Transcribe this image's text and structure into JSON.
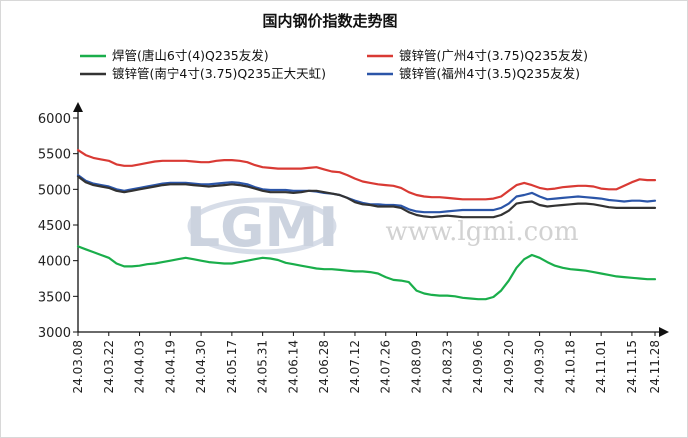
{
  "chart_data": {
    "type": "line",
    "title": "国内钢价指数走势图",
    "xlabel": "",
    "ylabel": "",
    "ylim": [
      3000,
      6000
    ],
    "yticks": [
      3000,
      3500,
      4000,
      4500,
      5000,
      5500,
      6000
    ],
    "grid": false,
    "legend_position": "top",
    "x_tick_labels": [
      "24.03.08",
      "24.03.22",
      "24.04.03",
      "24.04.19",
      "24.04.30",
      "24.05.17",
      "24.05.31",
      "24.06.14",
      "24.06.28",
      "24.07.12",
      "24.07.26",
      "24.08.09",
      "24.08.23",
      "24.09.06",
      "24.09.20",
      "24.09.30",
      "24.10.18",
      "24.11.01",
      "24.11.15",
      "24.11.28"
    ],
    "x": [
      0,
      2,
      4,
      6,
      8,
      10,
      12,
      14,
      16,
      18,
      20,
      22,
      24,
      26,
      28,
      30,
      32,
      34,
      36,
      38,
      40,
      42,
      44,
      46,
      48,
      50,
      52,
      54,
      56,
      58,
      60,
      62,
      64,
      66,
      68,
      70,
      72,
      74,
      76,
      78,
      80,
      82,
      84,
      86,
      88,
      90,
      92,
      94,
      96,
      98,
      100,
      102,
      104,
      106,
      108,
      110,
      112,
      114
    ],
    "series": [
      {
        "name": "焊管(唐山6寸(4)Q235友发)",
        "color": "#1aae4b",
        "values": [
          4200,
          4160,
          4120,
          4080,
          4040,
          3960,
          3920,
          3920,
          3930,
          3950,
          3960,
          3980,
          4000,
          4020,
          4040,
          4020,
          4000,
          3980,
          3970,
          3960,
          3960,
          3980,
          4000,
          4020,
          4040,
          4030,
          4010,
          3970,
          3950,
          3930,
          3910,
          3890,
          3880,
          3880,
          3870,
          3860,
          3850,
          3850,
          3840,
          3820,
          3770,
          3730,
          3720,
          3700,
          3580,
          3540,
          3520,
          3510,
          3510,
          3500,
          3480,
          3470,
          3460,
          3460,
          3490,
          3580,
          3720,
          3900
        ]
      },
      {
        "name": "镀锌管(广州4寸(3.75)Q235友发)",
        "color": "#d93a34",
        "values": [
          5550,
          5480,
          5440,
          5420,
          5400,
          5350,
          5330,
          5330,
          5350,
          5370,
          5390,
          5400,
          5400,
          5400,
          5400,
          5390,
          5380,
          5380,
          5400,
          5410,
          5410,
          5400,
          5380,
          5340,
          5310,
          5300,
          5290,
          5290,
          5290,
          5290,
          5300,
          5310,
          5280,
          5250,
          5240,
          5200,
          5150,
          5110,
          5090,
          5070,
          5060,
          5050,
          5020,
          4960,
          4920,
          4900,
          4890,
          4890,
          4880,
          4870,
          4860,
          4860,
          4860,
          4860,
          4870,
          4900,
          4980,
          5060
        ]
      },
      {
        "name": "镀锌管(南宁4寸(3.75)Q235正大天虹)",
        "color": "#333333",
        "values": [
          5180,
          5100,
          5060,
          5040,
          5020,
          4980,
          4960,
          4980,
          5000,
          5020,
          5040,
          5060,
          5070,
          5070,
          5070,
          5060,
          5050,
          5040,
          5050,
          5060,
          5070,
          5060,
          5040,
          5010,
          4980,
          4960,
          4960,
          4960,
          4950,
          4960,
          4980,
          4980,
          4960,
          4940,
          4920,
          4880,
          4820,
          4790,
          4780,
          4760,
          4760,
          4760,
          4740,
          4680,
          4640,
          4620,
          4610,
          4620,
          4630,
          4620,
          4610,
          4610,
          4610,
          4610,
          4610,
          4640,
          4700,
          4800
        ]
      },
      {
        "name": "镀锌管(福州4寸(3.5)Q235友发)",
        "color": "#2b55a8",
        "values": [
          5200,
          5120,
          5080,
          5060,
          5040,
          5000,
          4980,
          5000,
          5020,
          5040,
          5060,
          5080,
          5090,
          5090,
          5090,
          5080,
          5070,
          5070,
          5080,
          5090,
          5100,
          5090,
          5070,
          5030,
          5000,
          4990,
          4990,
          4990,
          4980,
          4980,
          4980,
          4970,
          4950,
          4940,
          4920,
          4880,
          4840,
          4810,
          4790,
          4790,
          4780,
          4780,
          4770,
          4720,
          4690,
          4680,
          4680,
          4680,
          4690,
          4700,
          4710,
          4710,
          4710,
          4710,
          4710,
          4740,
          4800,
          4900
        ]
      }
    ],
    "series_tail": {
      "x": [
        116,
        118,
        120,
        122,
        124,
        126,
        128,
        130,
        132,
        134,
        136,
        138,
        140,
        142,
        144,
        146,
        148,
        150
      ],
      "values": [
        [
          4020,
          4080,
          4040,
          3980,
          3930,
          3900,
          3880,
          3870,
          3860,
          3840,
          3820,
          3800,
          3780,
          3770,
          3760,
          3750,
          3740,
          3740
        ],
        [
          5090,
          5060,
          5020,
          5000,
          5010,
          5030,
          5040,
          5050,
          5050,
          5040,
          5010,
          5000,
          5000,
          5050,
          5100,
          5140,
          5130,
          5130
        ],
        [
          4820,
          4830,
          4780,
          4760,
          4770,
          4780,
          4790,
          4800,
          4800,
          4790,
          4770,
          4750,
          4740,
          4740,
          4740,
          4740,
          4740,
          4740
        ],
        [
          4920,
          4950,
          4900,
          4860,
          4870,
          4880,
          4890,
          4900,
          4890,
          4880,
          4870,
          4850,
          4840,
          4830,
          4840,
          4840,
          4830,
          4840
        ]
      ]
    },
    "x_tick_positions": [
      0,
      8,
      16,
      24,
      32,
      40,
      48,
      56,
      64,
      72,
      80,
      88,
      96,
      104,
      112,
      120,
      128,
      136,
      144,
      150
    ]
  },
  "watermark": {
    "logo_text": "LGMI",
    "url_text": "www.lgmi.com"
  }
}
